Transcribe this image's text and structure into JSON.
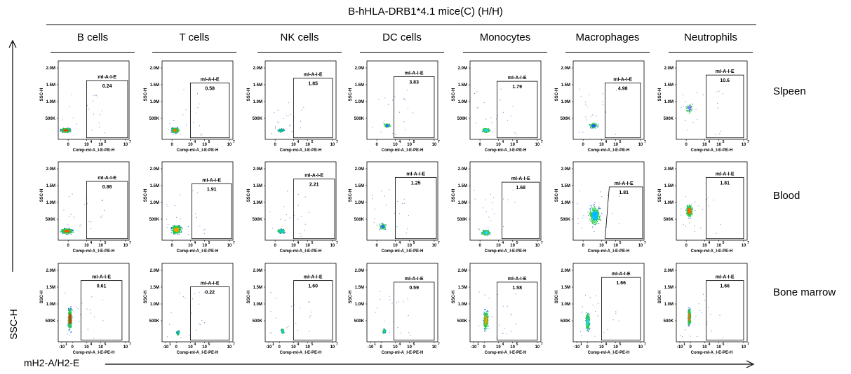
{
  "title": "B-hHLA-DRB1*4.1 mice(C) (H/H)",
  "columns": [
    "B cells",
    "T cells",
    "NK cells",
    "DC cells",
    "Monocytes",
    "Macrophages",
    "Neutrophils"
  ],
  "rows": [
    "Slpeen",
    "Blood",
    "Bone marrow"
  ],
  "x_axis_label": "mH2-A/H2-E",
  "y_axis_label": "SSC-H",
  "panel": {
    "gate_name": "mI-A-I-E",
    "x_label": "Comp-mI-A_I-E-PE-H",
    "y_label": "SSC-H",
    "y_ticks": [
      "2.0M",
      "1.5M",
      "1.0M",
      "500K"
    ],
    "x_ticks_spleen_blood": [
      "0",
      "10",
      "10",
      "10"
    ],
    "x_ticks_marrow": [
      "-10",
      "0",
      "10",
      "10",
      "10"
    ]
  },
  "chart_data": {
    "type": "scatter",
    "title": "B-hHLA-DRB1*4.1 mice(C) (H/H)",
    "xlabel": "mH2-A/H2-E",
    "ylabel": "SSC-H",
    "gate": "mI-A-I-E",
    "columns": [
      "B cells",
      "T cells",
      "NK cells",
      "DC cells",
      "Monocytes",
      "Macrophages",
      "Neutrophils"
    ],
    "rows": [
      "Slpeen",
      "Blood",
      "Bone marrow"
    ],
    "gate_percent": [
      [
        "0.24",
        "0.58",
        "1.85",
        "3.83",
        "1.79",
        "4.98",
        "10.6"
      ],
      [
        "0.86",
        "1.91",
        "2.21",
        "1.25",
        "1.68",
        "1.81",
        "1.81"
      ],
      [
        "0.61",
        "0.22",
        "1.60",
        "0.59",
        "1.58",
        "1.66",
        "1.66"
      ]
    ]
  }
}
